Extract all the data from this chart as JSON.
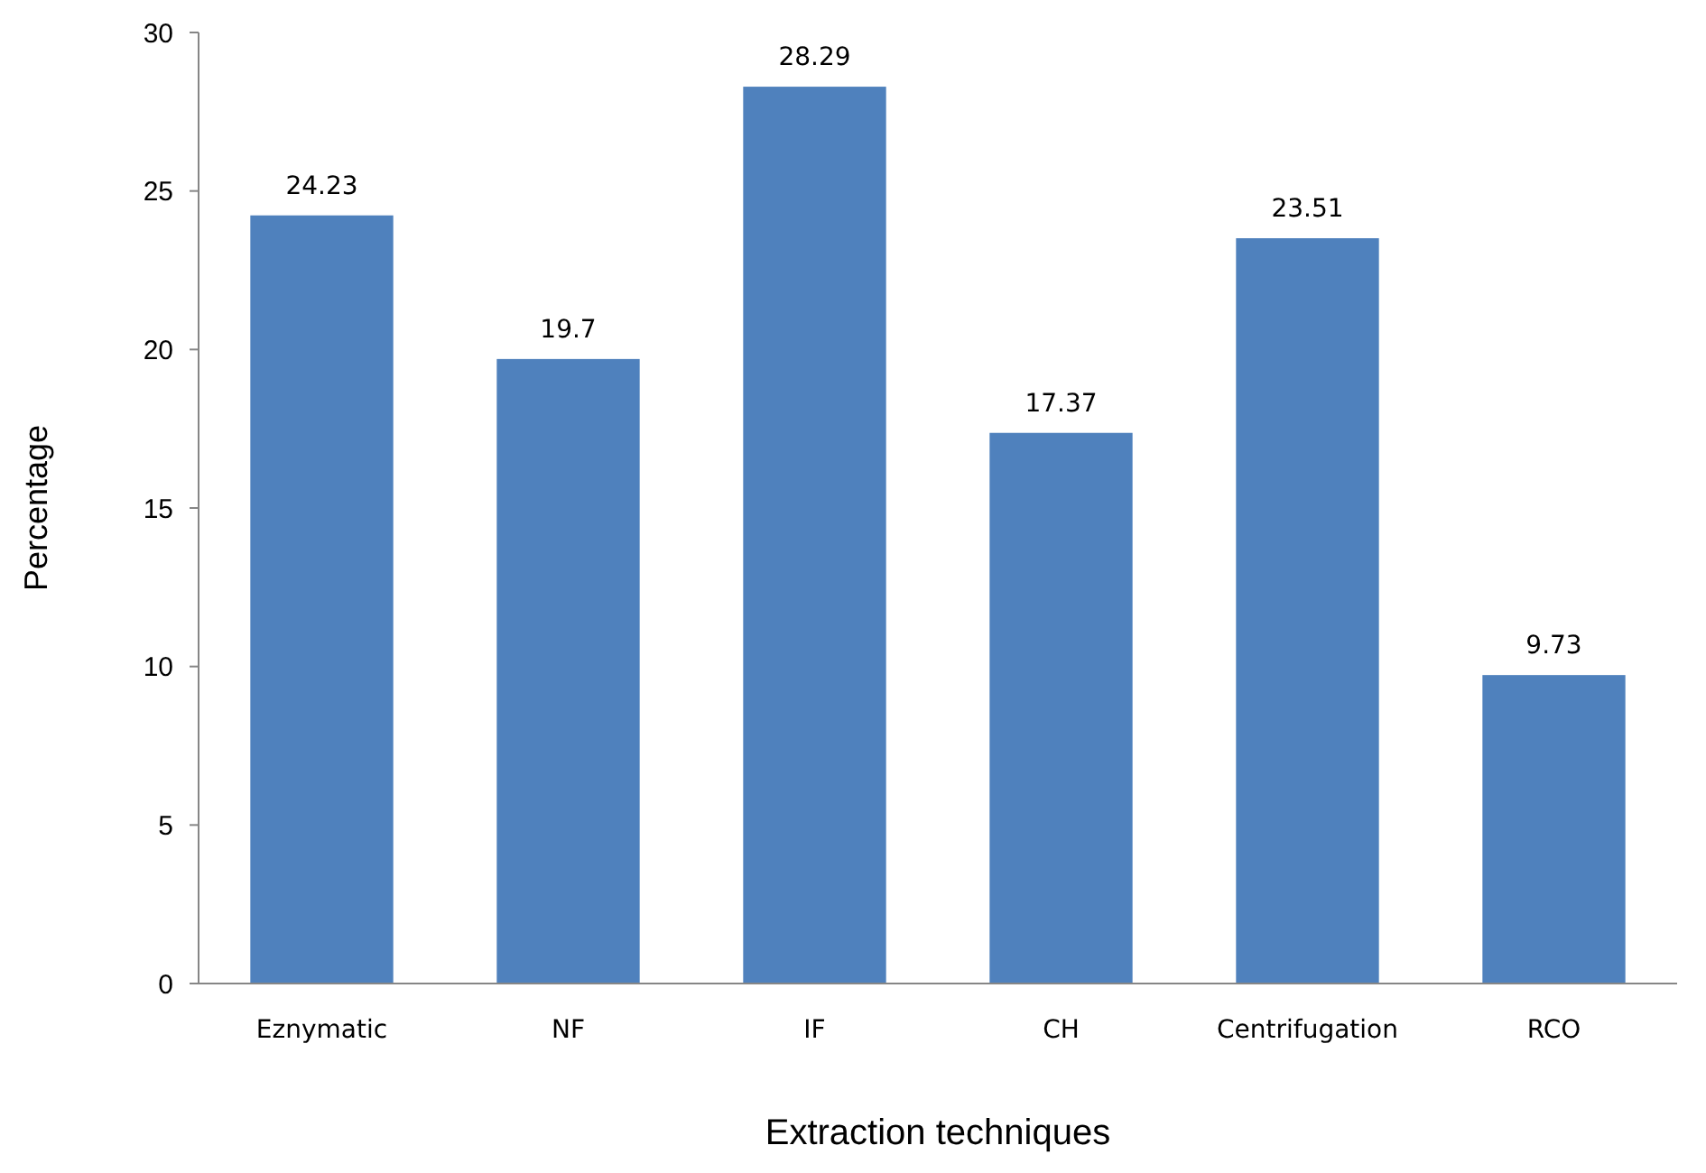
{
  "chart_data": {
    "type": "bar",
    "xlabel": "Extraction techniques",
    "ylabel": "Percentage",
    "categories": [
      "Eznymatic",
      "NF",
      "IF",
      "CH",
      "Centrifugation",
      "RCO"
    ],
    "values": [
      24.23,
      19.7,
      28.29,
      17.37,
      23.51,
      9.73
    ],
    "color": "#4f81bd",
    "ylim": [
      0,
      30
    ],
    "yticks": [
      0,
      5,
      10,
      15,
      20,
      25,
      30
    ],
    "data_labels": true,
    "grid": false
  }
}
